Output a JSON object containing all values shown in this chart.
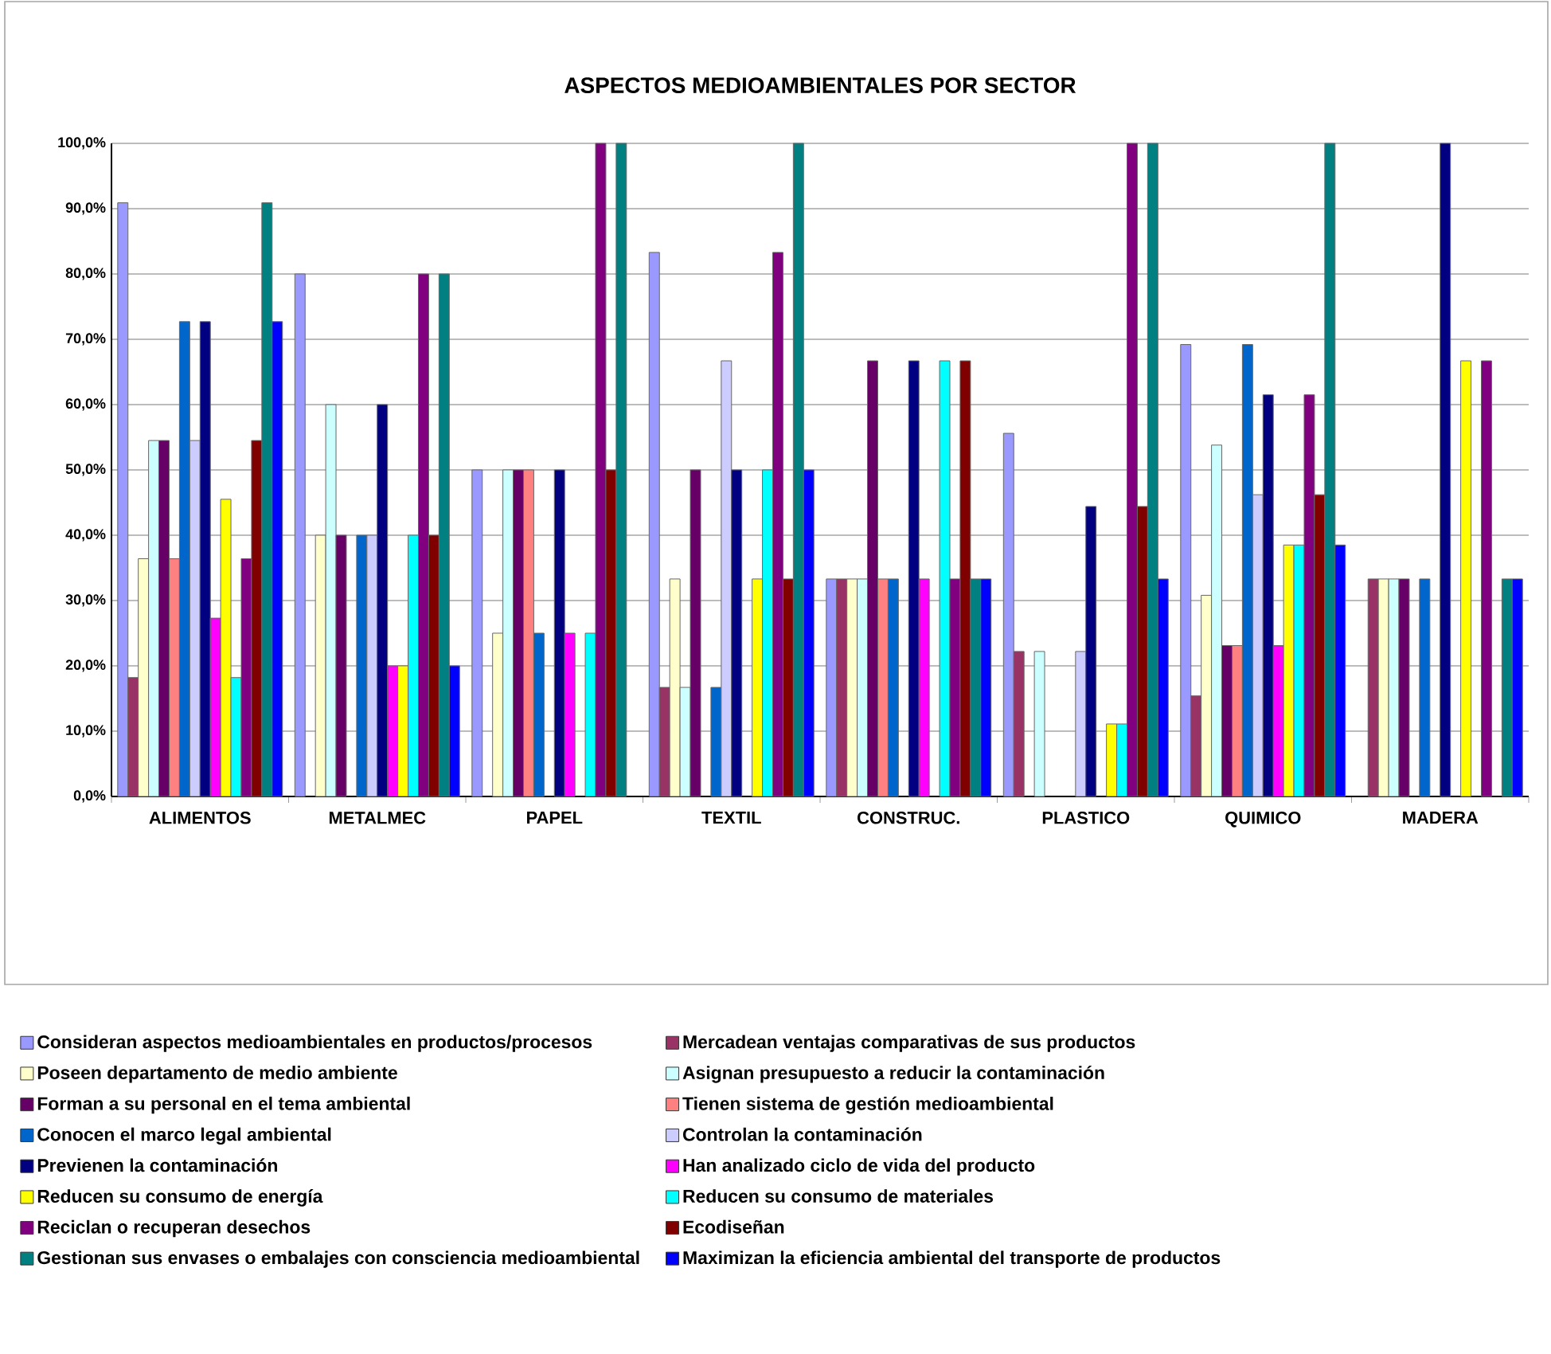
{
  "chart_data": {
    "type": "bar",
    "title": "ASPECTOS MEDIOAMBIENTALES POR SECTOR",
    "categories": [
      "ALIMENTOS",
      "METALMEC",
      "PAPEL",
      "TEXTIL",
      "CONSTRUC.",
      "PLASTICO",
      "QUIMICO",
      "MADERA"
    ],
    "series": [
      {
        "name": "Consideran aspectos medioambientales en productos/procesos",
        "color": "#9999ff",
        "values": [
          90.9,
          80,
          50,
          83.3,
          33.3,
          55.6,
          69.2,
          null
        ]
      },
      {
        "name": "Mercadean ventajas comparativas de sus productos",
        "color": "#993366",
        "values": [
          18.2,
          null,
          null,
          16.7,
          33.3,
          22.2,
          15.4,
          33.3
        ]
      },
      {
        "name": "Poseen departamento de medio ambiente",
        "color": "#ffffcc",
        "values": [
          36.4,
          40,
          25,
          33.3,
          33.3,
          null,
          30.8,
          33.3
        ]
      },
      {
        "name": "Asignan presupuesto a reducir la contaminación",
        "color": "#ccffff",
        "values": [
          54.5,
          60,
          50,
          16.7,
          33.3,
          22.2,
          53.8,
          33.3
        ]
      },
      {
        "name": "Forman a su personal en el tema ambiental",
        "color": "#660066",
        "values": [
          54.5,
          40,
          50,
          50,
          66.7,
          null,
          23.1,
          33.3
        ]
      },
      {
        "name": "Tienen sistema de gestión medioambiental",
        "color": "#ff8080",
        "values": [
          36.4,
          null,
          50,
          null,
          33.3,
          null,
          23.1,
          null
        ]
      },
      {
        "name": "Conocen el marco legal ambiental",
        "color": "#0066cc",
        "values": [
          72.7,
          40,
          25,
          16.7,
          33.3,
          null,
          69.2,
          33.3
        ]
      },
      {
        "name": "Controlan la contaminación",
        "color": "#ccccff",
        "values": [
          54.5,
          40,
          null,
          66.7,
          null,
          22.2,
          46.2,
          null
        ]
      },
      {
        "name": "Previenen la contaminación",
        "color": "#000080",
        "values": [
          72.7,
          60,
          50,
          50,
          66.7,
          44.4,
          61.5,
          100
        ]
      },
      {
        "name": "Han analizado ciclo de vida del producto",
        "color": "#ff00ff",
        "values": [
          27.3,
          20,
          25,
          null,
          33.3,
          null,
          23.1,
          null
        ]
      },
      {
        "name": "Reducen su consumo de energía",
        "color": "#ffff00",
        "values": [
          45.5,
          20,
          null,
          33.3,
          null,
          11.1,
          38.5,
          66.7
        ]
      },
      {
        "name": "Reducen su consumo de materiales",
        "color": "#00ffff",
        "values": [
          18.2,
          40,
          25,
          50,
          66.7,
          11.1,
          38.5,
          null
        ]
      },
      {
        "name": "Reciclan o recuperan desechos",
        "color": "#800080",
        "values": [
          36.4,
          80,
          100,
          83.3,
          33.3,
          100,
          61.5,
          66.7
        ]
      },
      {
        "name": "Ecodiseñan",
        "color": "#800000",
        "values": [
          54.5,
          40,
          50,
          33.3,
          66.7,
          44.4,
          46.2,
          null
        ]
      },
      {
        "name": "Gestionan sus envases o embalajes con consciencia medioambiental",
        "color": "#008080",
        "values": [
          90.9,
          80,
          100,
          100,
          33.3,
          100,
          100,
          33.3
        ]
      },
      {
        "name": "Maximizan la eficiencia ambiental del transporte de productos",
        "color": "#0000ff",
        "values": [
          72.7,
          20,
          null,
          50,
          33.3,
          33.3,
          38.5,
          33.3
        ]
      }
    ],
    "ylim": [
      0,
      100
    ],
    "yticks": [
      {
        "value": 0,
        "label": "0,0%"
      },
      {
        "value": 10,
        "label": "10,0%"
      },
      {
        "value": 20,
        "label": "20,0%"
      },
      {
        "value": 30,
        "label": "30,0%"
      },
      {
        "value": 40,
        "label": "40,0%"
      },
      {
        "value": 50,
        "label": "50,0%"
      },
      {
        "value": 60,
        "label": "60,0%"
      },
      {
        "value": 70,
        "label": "70,0%"
      },
      {
        "value": 80,
        "label": "80,0%"
      },
      {
        "value": 90,
        "label": "90,0%"
      },
      {
        "value": 100,
        "label": "100,0%"
      }
    ],
    "grid": "y",
    "legend": "bottom"
  }
}
